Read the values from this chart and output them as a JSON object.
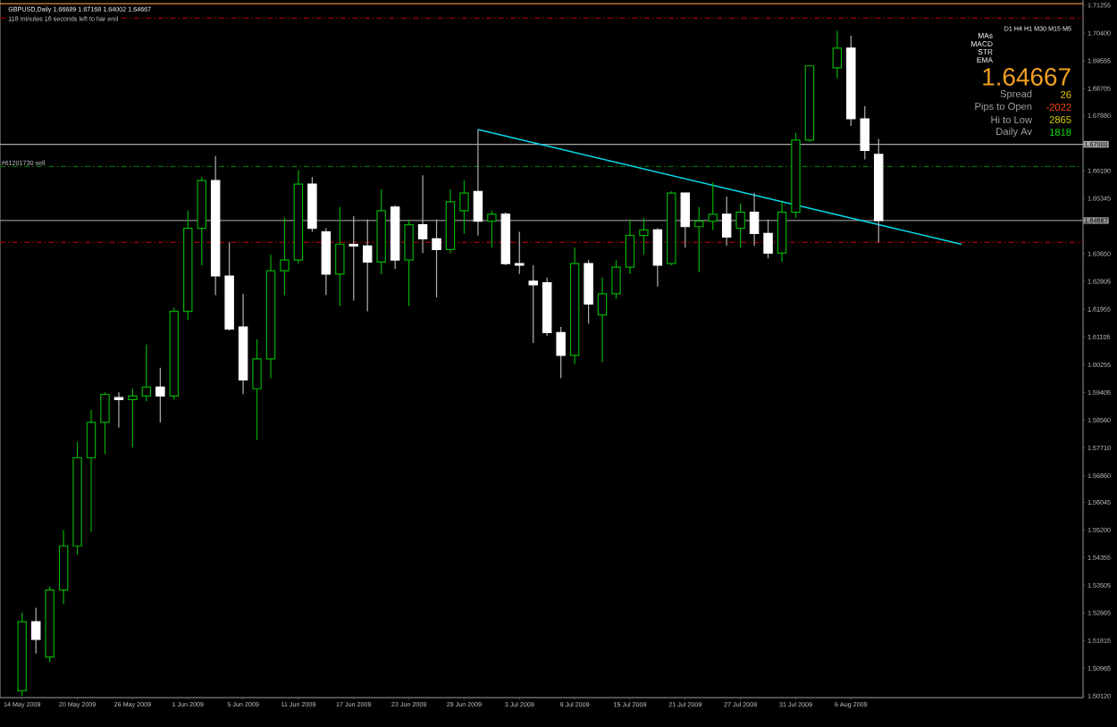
{
  "chart_data": {
    "type": "candlestick",
    "title": "GBPUSD,Daily  1.66689 1.67168 1.64002 1.64667",
    "subtitle": "118 minutes 16 seconds left to bar end",
    "categories": [
      "14 May 2009",
      null,
      null,
      null,
      "20 May 2009",
      null,
      null,
      null,
      "26 May 2009",
      null,
      null,
      null,
      "1 Jun 2009",
      null,
      null,
      null,
      "5 Jun 2009",
      null,
      null,
      null,
      "11 Jun 2009",
      null,
      null,
      null,
      "17 Jun 2009",
      null,
      null,
      null,
      "23 Jun 2009",
      null,
      null,
      null,
      "29 Jun 2009",
      null,
      null,
      null,
      "3 Jul 2009",
      null,
      null,
      null,
      "9 Jul 2009",
      null,
      null,
      null,
      "15 Jul 2009",
      null,
      null,
      null,
      "21 Jul 2009",
      null,
      null,
      null,
      "27 Jul 2009",
      null,
      null,
      null,
      "31 Jul 2009",
      null,
      null,
      null,
      "6 Aug 2009",
      null,
      null,
      null,
      null,
      null,
      null,
      null,
      null,
      null,
      null,
      null,
      null,
      null,
      null,
      null,
      null
    ],
    "ohlc": [
      [
        1.5028,
        1.5266,
        1.5012,
        1.5239
      ],
      [
        1.5239,
        1.5282,
        1.5142,
        1.5185
      ],
      [
        1.5131,
        1.5347,
        1.5115,
        1.5336
      ],
      [
        1.5336,
        1.552,
        1.5293,
        1.5471
      ],
      [
        1.5471,
        1.579,
        1.5444,
        1.5741
      ],
      [
        1.5741,
        1.5887,
        1.5514,
        1.5849
      ],
      [
        1.5849,
        1.5941,
        1.5752,
        1.5935
      ],
      [
        1.5925,
        1.5941,
        1.5833,
        1.5919
      ],
      [
        1.5919,
        1.5952,
        1.5773,
        1.593
      ],
      [
        1.593,
        1.6087,
        1.5914,
        1.5957
      ],
      [
        1.5957,
        1.6016,
        1.5849,
        1.593
      ],
      [
        1.593,
        1.62,
        1.5919,
        1.6189
      ],
      [
        1.6189,
        1.6497,
        1.6162,
        1.6443
      ],
      [
        1.6443,
        1.66,
        1.633,
        1.6589
      ],
      [
        1.6589,
        1.6664,
        1.6238,
        1.6297
      ],
      [
        1.6297,
        1.64,
        1.613,
        1.6135
      ],
      [
        1.6141,
        1.6243,
        1.5935,
        1.5979
      ],
      [
        1.5952,
        1.6103,
        1.5795,
        1.6043
      ],
      [
        1.6043,
        1.6362,
        1.5984,
        1.6313
      ],
      [
        1.6313,
        1.6475,
        1.6238,
        1.6346
      ],
      [
        1.6346,
        1.6621,
        1.6335,
        1.6578
      ],
      [
        1.6578,
        1.66,
        1.6432,
        1.6443
      ],
      [
        1.6432,
        1.6443,
        1.6238,
        1.6303
      ],
      [
        1.6303,
        1.6508,
        1.6205,
        1.6394
      ],
      [
        1.6394,
        1.6481,
        1.6222,
        1.6389
      ],
      [
        1.6389,
        1.647,
        1.6189,
        1.634
      ],
      [
        1.634,
        1.6562,
        1.6303,
        1.6497
      ],
      [
        1.6508,
        1.6513,
        1.6319,
        1.6346
      ],
      [
        1.6346,
        1.647,
        1.6205,
        1.6454
      ],
      [
        1.6454,
        1.6605,
        1.6367,
        1.6411
      ],
      [
        1.6411,
        1.647,
        1.6232,
        1.6378
      ],
      [
        1.6378,
        1.6562,
        1.6367,
        1.6524
      ],
      [
        1.6497,
        1.6589,
        1.6427,
        1.6551
      ],
      [
        1.6556,
        1.6745,
        1.6421,
        1.6465
      ],
      [
        1.6465,
        1.6497,
        1.6384,
        1.6486
      ],
      [
        1.6486,
        1.6492,
        1.633,
        1.6335
      ],
      [
        1.6335,
        1.6432,
        1.6303,
        1.633
      ],
      [
        1.6281,
        1.633,
        1.6092,
        1.627
      ],
      [
        1.6276,
        1.6292,
        1.6114,
        1.6124
      ],
      [
        1.6124,
        1.6141,
        1.5984,
        1.6054
      ],
      [
        1.6054,
        1.6384,
        1.6027,
        1.6335
      ],
      [
        1.6335,
        1.6346,
        1.6151,
        1.6211
      ],
      [
        1.6178,
        1.6292,
        1.6033,
        1.6243
      ],
      [
        1.6243,
        1.6346,
        1.6227,
        1.6324
      ],
      [
        1.6324,
        1.647,
        1.6303,
        1.6421
      ],
      [
        1.6421,
        1.6475,
        1.6362,
        1.6438
      ],
      [
        1.6438,
        1.6443,
        1.6265,
        1.633
      ],
      [
        1.6335,
        1.6556,
        1.633,
        1.6551
      ],
      [
        1.6551,
        1.6551,
        1.6384,
        1.6448
      ],
      [
        1.6448,
        1.6508,
        1.6308,
        1.6465
      ],
      [
        1.6465,
        1.6583,
        1.6438,
        1.6486
      ],
      [
        1.6486,
        1.654,
        1.6389,
        1.6416
      ],
      [
        1.6443,
        1.6519,
        1.6384,
        1.6492
      ],
      [
        1.6492,
        1.6551,
        1.6389,
        1.6427
      ],
      [
        1.6427,
        1.647,
        1.6351,
        1.6367
      ],
      [
        1.6367,
        1.6524,
        1.634,
        1.6492
      ],
      [
        1.6492,
        1.6735,
        1.6475,
        1.6713
      ],
      [
        1.6713,
        1.694,
        1.6708,
        1.694
      ],
      null,
      [
        1.6934,
        1.7048,
        1.6902,
        1.6994
      ],
      [
        1.6994,
        1.7032,
        1.6756,
        1.6778
      ],
      [
        1.6778,
        1.6816,
        1.6654,
        1.6681
      ],
      [
        1.66689,
        1.67168,
        1.64002,
        1.64667
      ],
      null,
      null,
      null,
      null,
      null,
      null,
      null,
      null,
      null,
      null,
      null,
      null,
      null,
      null
    ],
    "series": [
      {
        "type": "line",
        "color": "#00d8e8",
        "values": [
          null,
          null,
          null,
          null,
          null,
          null,
          null,
          null,
          null,
          null,
          null,
          null,
          null,
          null,
          null,
          null,
          null,
          null,
          null,
          null,
          null,
          null,
          null,
          null,
          null,
          null,
          null,
          null,
          null,
          null,
          null,
          null,
          null,
          1.6745,
          null,
          null,
          null,
          null,
          null,
          null,
          null,
          null,
          null,
          null,
          null,
          null,
          null,
          null,
          null,
          null,
          null,
          null,
          null,
          null,
          null,
          null,
          null,
          null,
          null,
          null,
          null,
          null,
          null,
          null,
          null,
          null,
          null,
          null,
          1.6394,
          null,
          null,
          null,
          null,
          null,
          null,
          null,
          null
        ]
      }
    ],
    "ylim": [
      1.5007,
      1.7155
    ],
    "yticks": [
      {
        "value": 1.5012,
        "label": "1.50120"
      },
      {
        "value": 1.50965,
        "label": "1.50965"
      },
      {
        "value": 1.51815,
        "label": "1.51815"
      },
      {
        "value": 1.52665,
        "label": "1.52665"
      },
      {
        "value": 1.53505,
        "label": "1.53505"
      },
      {
        "value": 1.54355,
        "label": "1.54355"
      },
      {
        "value": 1.552,
        "label": "1.55200"
      },
      {
        "value": 1.56045,
        "label": "1.56045"
      },
      {
        "value": 1.5686,
        "label": "1.56860"
      },
      {
        "value": 1.5771,
        "label": "1.57710"
      },
      {
        "value": 1.5856,
        "label": "1.58560"
      },
      {
        "value": 1.59405,
        "label": "1.59405"
      },
      {
        "value": 1.60255,
        "label": "1.60255"
      },
      {
        "value": 1.61105,
        "label": "1.61105"
      },
      {
        "value": 1.61955,
        "label": "1.61955"
      },
      {
        "value": 1.62805,
        "label": "1.62805"
      },
      {
        "value": 1.6365,
        "label": "1.63650"
      },
      {
        "value": 1.65345,
        "label": "1.65345"
      },
      {
        "value": 1.6619,
        "label": "1.66190"
      },
      {
        "value": 1.6788,
        "label": "1.67880"
      },
      {
        "value": 1.68705,
        "label": "1.68705"
      },
      {
        "value": 1.69555,
        "label": "1.69555"
      },
      {
        "value": 1.704,
        "label": "1.70400"
      },
      {
        "value": 1.71255,
        "label": "1.71255"
      }
    ],
    "ref_lines": [
      {
        "axis": "y",
        "value": 1.67,
        "label": "1.67000",
        "color": "#a8a8a8",
        "line_style": "solid"
      },
      {
        "axis": "y",
        "value": 1.64667,
        "label": "1.64667",
        "color": "#909090",
        "line_style": "solid"
      },
      {
        "axis": "y",
        "value": 1.6632,
        "label": "#61201730 sell",
        "color": "#007000",
        "line_style": "dashed"
      },
      {
        "axis": "y",
        "value": 1.64,
        "color": "#a00000",
        "line_style": "dashed"
      },
      {
        "axis": "y",
        "value": 1.7086,
        "color": "#a00000",
        "line_style": "dashed"
      },
      {
        "axis": "y",
        "value": 1.713,
        "color": "#e08a30",
        "line_style": "solid"
      }
    ],
    "annotations": [
      "D1 H4 H1 M30 M15 M5",
      "MAs",
      "MACD",
      "STR",
      "EMA",
      "1.64667",
      "Spread",
      "26",
      "Pips to Open",
      "-2022",
      "Hi to Low",
      "2865",
      "Daily Av",
      "1818"
    ]
  }
}
